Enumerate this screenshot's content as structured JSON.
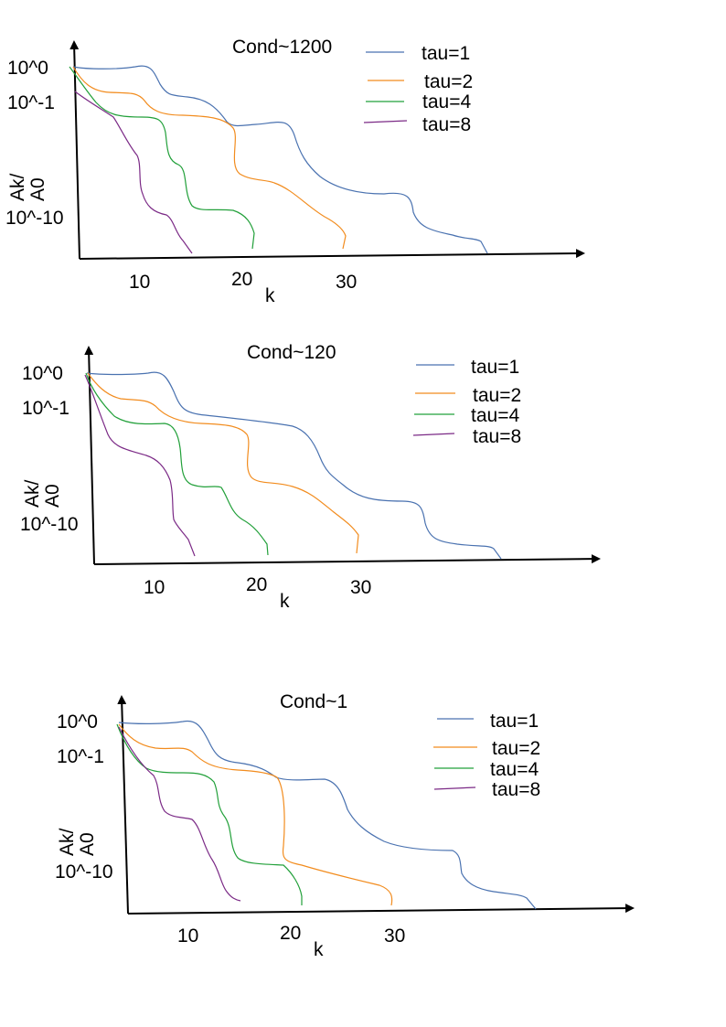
{
  "colors": {
    "tau1": "#4a72b0",
    "tau2": "#f28c1e",
    "tau4": "#22a03a",
    "tau8": "#7b2a86",
    "axis": "#000000"
  },
  "chart_data": [
    {
      "type": "line",
      "title": "Cond~1200",
      "xlabel": "k",
      "ylabel": "Ak/ A0",
      "ylabel_lines": [
        "Ak/",
        "A0"
      ],
      "x_ticks": [
        "10",
        "20",
        "30"
      ],
      "y_ticks": [
        "10^0",
        "10^-1",
        "10^-10"
      ],
      "legend": "top-right",
      "series": [
        {
          "name": "tau=1",
          "color_key": "tau1",
          "end_k": 40
        },
        {
          "name": "tau=2",
          "color_key": "tau2",
          "end_k": 30
        },
        {
          "name": "tau=4",
          "color_key": "tau4",
          "end_k": 20
        },
        {
          "name": "tau=8",
          "color_key": "tau8",
          "end_k": 10
        }
      ]
    },
    {
      "type": "line",
      "title": "Cond~120",
      "xlabel": "k",
      "ylabel": "Ak/ A0",
      "ylabel_lines": [
        "Ak/",
        "A0"
      ],
      "x_ticks": [
        "10",
        "20",
        "30"
      ],
      "y_ticks": [
        "10^0",
        "10^-1",
        "10^-10"
      ],
      "legend": "top-right",
      "series": [
        {
          "name": "tau=1",
          "color_key": "tau1",
          "end_k": 40
        },
        {
          "name": "tau=2",
          "color_key": "tau2",
          "end_k": 30
        },
        {
          "name": "tau=4",
          "color_key": "tau4",
          "end_k": 20
        },
        {
          "name": "tau=8",
          "color_key": "tau8",
          "end_k": 10
        }
      ]
    },
    {
      "type": "line",
      "title": "Cond~1",
      "xlabel": "k",
      "ylabel": "Ak/ A0",
      "ylabel_lines": [
        "Ak/",
        "A0"
      ],
      "x_ticks": [
        "10",
        "20",
        "30"
      ],
      "y_ticks": [
        "10^0",
        "10^-1",
        "10^-10"
      ],
      "legend": "top-right",
      "series": [
        {
          "name": "tau=1",
          "color_key": "tau1",
          "end_k": 40
        },
        {
          "name": "tau=2",
          "color_key": "tau2",
          "end_k": 30
        },
        {
          "name": "tau=4",
          "color_key": "tau4",
          "end_k": 20
        },
        {
          "name": "tau=8",
          "color_key": "tau8",
          "end_k": 10
        }
      ]
    }
  ]
}
